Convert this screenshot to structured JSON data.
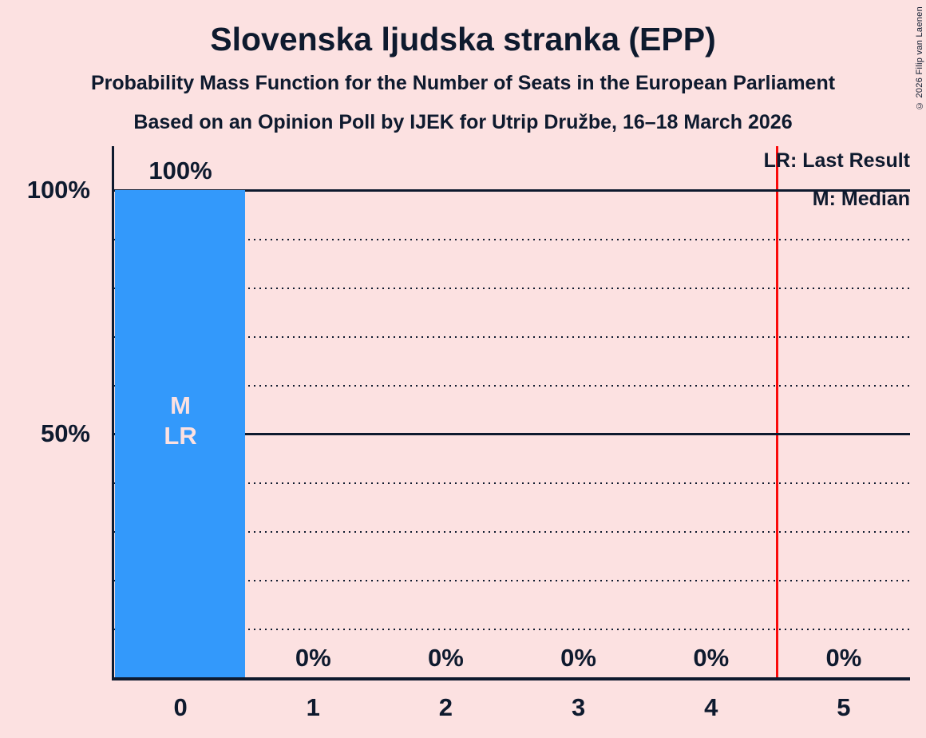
{
  "title": "Slovenska ljudska stranka (EPP)",
  "subtitle_line1": "Probability Mass Function for the Number of Seats in the European Parliament",
  "subtitle_line2": "Based on an Opinion Poll by IJEK for Utrip Družbe, 16–18 March 2026",
  "copyright": "© 2026 Filip van Laenen",
  "legend": {
    "last_result": "LR: Last Result",
    "median": "M: Median"
  },
  "colors": {
    "background": "#fce1e1",
    "bar": "#3399fb",
    "text": "#0e1a2e",
    "threshold_line": "#fa0a0a"
  },
  "chart_data": {
    "type": "bar",
    "title": "Slovenska ljudska stranka (EPP)",
    "categories": [
      "0",
      "1",
      "2",
      "3",
      "4",
      "5"
    ],
    "values": [
      100,
      0,
      0,
      0,
      0,
      0
    ],
    "value_labels": [
      "100%",
      "0%",
      "0%",
      "0%",
      "0%",
      "0%"
    ],
    "ylim": [
      0,
      100
    ],
    "y_gridline_step": 10,
    "y_solid_gridlines": [
      50,
      100
    ],
    "y_axis_labels": [
      {
        "value": 100,
        "label": "100%"
      },
      {
        "value": 50,
        "label": "50%"
      }
    ],
    "grid": "dotted horizontal, solid at 50% and 100%",
    "legend_position": "top-right",
    "median_category": "0",
    "last_result_category": "0",
    "annotation_category_index": 0,
    "bar_annotation_lines": [
      "M",
      "LR"
    ],
    "threshold_line_position": 4.5
  }
}
